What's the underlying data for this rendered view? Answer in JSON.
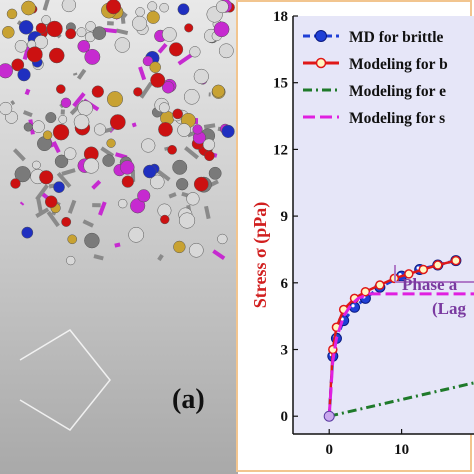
{
  "panel_a": {
    "label": "(a)"
  },
  "colors": {
    "md": "#1f3fd6",
    "brittle": "#e01818",
    "elastic": "#1f7a2a",
    "softening": "#e020e0",
    "axis_label": "#d11f1f",
    "plot_bg": "#e6e6f8"
  },
  "chart_data": {
    "type": "line",
    "xlabel": "",
    "ylabel": "Stress σ (pPa)",
    "xlim": [
      -5,
      20
    ],
    "ylim": [
      -0.8,
      18
    ],
    "xticks": [
      0,
      10
    ],
    "yticks": [
      0,
      3,
      6,
      9,
      12,
      15,
      18
    ],
    "annotation": [
      "Phase a",
      "(Lag"
    ],
    "series": [
      {
        "name": "MD for brittle",
        "style": "dashed-markers",
        "color": "#1f3fd6",
        "x": [
          0,
          0.5,
          1,
          2,
          3.5,
          5,
          7,
          10,
          12.5,
          15,
          17.5
        ],
        "y": [
          0,
          2.7,
          3.5,
          4.3,
          4.9,
          5.3,
          5.8,
          6.3,
          6.6,
          6.8,
          7.0
        ]
      },
      {
        "name": "Modeling for b",
        "style": "solid-open-markers",
        "color": "#e01818",
        "x": [
          0,
          0.5,
          1,
          2,
          3.5,
          5,
          7,
          9,
          11,
          13,
          15,
          17.5
        ],
        "y": [
          0,
          3.0,
          4.0,
          4.8,
          5.3,
          5.6,
          5.9,
          6.2,
          6.4,
          6.6,
          6.8,
          7.0
        ]
      },
      {
        "name": "Modeling for e",
        "style": "dash-dot",
        "color": "#1f7a2a",
        "x": [
          0,
          20
        ],
        "y": [
          0,
          1.5
        ]
      },
      {
        "name": "Modeling for s",
        "style": "dashed",
        "color": "#e020e0",
        "x": [
          0,
          0.5,
          1,
          2,
          3,
          4,
          5.5,
          20
        ],
        "y": [
          0,
          2.5,
          3.5,
          4.5,
          5.0,
          5.3,
          5.5,
          5.5
        ]
      }
    ],
    "legend": "top-right"
  }
}
